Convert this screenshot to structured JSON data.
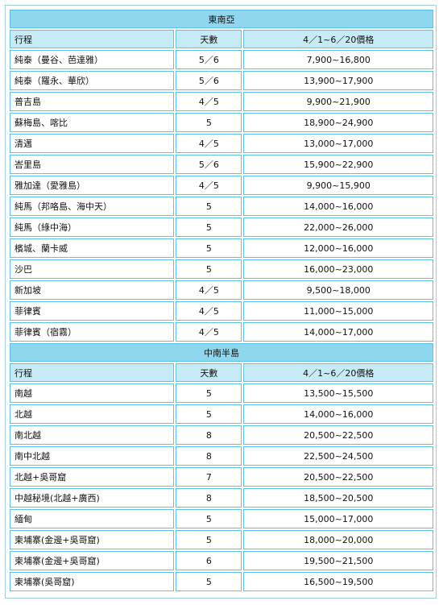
{
  "sections": [
    {
      "title": "東南亞",
      "header": {
        "route": "行程",
        "days": "天數",
        "price": "4／1~6／20價格"
      },
      "rows": [
        {
          "route": "純泰（曼谷、芭達雅）",
          "days": "5／6",
          "price": "7,900~16,800"
        },
        {
          "route": "純泰（羅永、華欣）",
          "days": "5／6",
          "price": "13,900~17,900"
        },
        {
          "route": "普吉島",
          "days": "4／5",
          "price": "9,900~21,900"
        },
        {
          "route": "蘇梅島、喀比",
          "days": "5",
          "price": "18,900~24,900"
        },
        {
          "route": "清邁",
          "days": "4／5",
          "price": "13,000~17,000"
        },
        {
          "route": "峇里島",
          "days": "5／6",
          "price": "15,900~22,900"
        },
        {
          "route": "雅加達（愛雅島）",
          "days": "4／5",
          "price": "9,900~15,900"
        },
        {
          "route": "純馬（邦咯島、海中天）",
          "days": "5",
          "price": "14,000~16,000"
        },
        {
          "route": "純馬（綠中海）",
          "days": "5",
          "price": "22,000~26,000"
        },
        {
          "route": "檳城、蘭卡威",
          "days": "5",
          "price": "12,000~16,000"
        },
        {
          "route": "沙巴",
          "days": "5",
          "price": "16,000~23,000"
        },
        {
          "route": "新加坡",
          "days": "4／5",
          "price": "9,500~18,000"
        },
        {
          "route": "菲律賓",
          "days": "4／5",
          "price": "11,000~15,000"
        },
        {
          "route": "菲律賓（宿霧）",
          "days": "4／5",
          "price": "14,000~17,000"
        }
      ]
    },
    {
      "title": "中南半島",
      "header": {
        "route": "行程",
        "days": "天數",
        "price": "4／1~6／20價格"
      },
      "rows": [
        {
          "route": "南越",
          "days": "5",
          "price": "13,500~15,500"
        },
        {
          "route": "北越",
          "days": "5",
          "price": "14,000~16,000"
        },
        {
          "route": "南北越",
          "days": "8",
          "price": "20,500~22,500"
        },
        {
          "route": "南中北越",
          "days": "8",
          "price": "22,500~24,500"
        },
        {
          "route": "北越+吳哥窟",
          "days": "7",
          "price": "20,500~22,500"
        },
        {
          "route": "中越秘境(北越+廣西)",
          "days": "8",
          "price": "18,500~20,500"
        },
        {
          "route": "緬甸",
          "days": "5",
          "price": "15,000~17,000"
        },
        {
          "route": "柬埔寨(金邊+吳哥窟)",
          "days": "5",
          "price": "18,000~20,000"
        },
        {
          "route": "柬埔寨(金邊+吳哥窟)",
          "days": "6",
          "price": "19,500~21,500"
        },
        {
          "route": "柬埔寨(吳哥窟)",
          "days": "5",
          "price": "16,500~19,500"
        }
      ]
    }
  ]
}
